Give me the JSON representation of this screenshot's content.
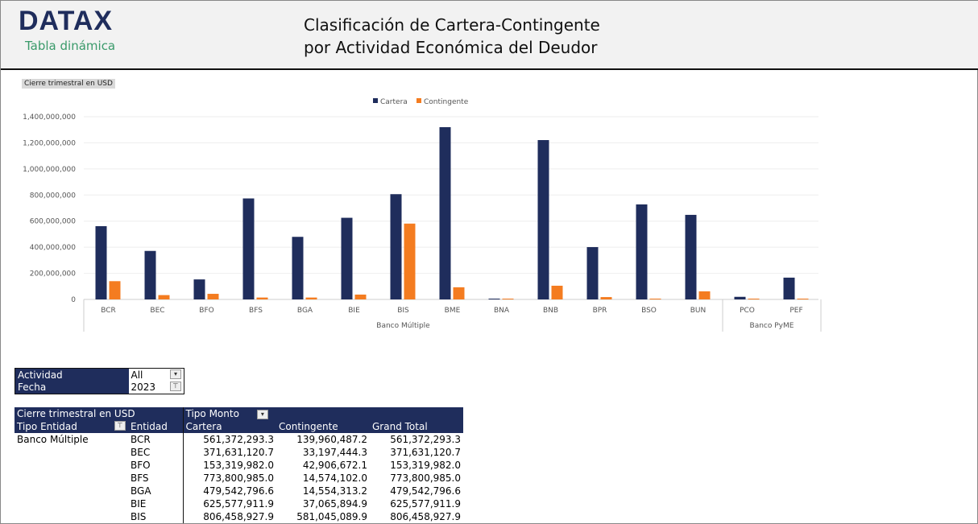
{
  "header": {
    "logo": "DATAX",
    "subtitle": "Tabla dinámica",
    "title_line1": "Clasificación de Cartera-Contingente",
    "title_line2": "por Actividad Económica del Deudor"
  },
  "field_chip": "Cierre trimestral en USD",
  "chart_data": {
    "type": "bar",
    "ylim": [
      0,
      1400000000
    ],
    "yticks": [
      "0",
      "200,000,000",
      "400,000,000",
      "600,000,000",
      "800,000,000",
      "1,000,000,000",
      "1,200,000,000",
      "1,400,000,000"
    ],
    "grid": true,
    "legend_position": "top",
    "categories": [
      "BCR",
      "BEC",
      "BFO",
      "BFS",
      "BGA",
      "BIE",
      "BIS",
      "BME",
      "BNA",
      "BNB",
      "BPR",
      "BSO",
      "BUN",
      "PCO",
      "PEF"
    ],
    "groups": [
      {
        "label": "Banco Múltiple",
        "count": 13
      },
      {
        "label": "Banco PyME",
        "count": 2
      }
    ],
    "series": [
      {
        "name": "Cartera",
        "color": "#1f2d5c",
        "values": [
          561372293.3,
          371631120.7,
          153319982.0,
          773800985.0,
          479542796.6,
          625577911.9,
          806458927.9,
          1320000000,
          5000000,
          1221000000,
          401000000,
          728000000,
          648000000,
          20000000,
          167000000
        ]
      },
      {
        "name": "Contingente",
        "color": "#f47c20",
        "values": [
          139960487.2,
          33197444.3,
          42906672.1,
          14574102.0,
          14554313.2,
          37065894.9,
          581045089.9,
          93000000,
          1000000,
          105000000,
          18000000,
          1000000,
          62000000,
          1000000,
          1000000
        ]
      }
    ]
  },
  "filters": [
    {
      "label": "Actividad",
      "value": "All"
    },
    {
      "label": "Fecha",
      "value": "2023"
    }
  ],
  "pivot": {
    "corner": "Cierre trimestral en USD",
    "col_field": "Tipo Monto",
    "row_fields": [
      "Tipo Entidad",
      "Entidad"
    ],
    "columns": [
      "Cartera",
      "Contingente",
      "Grand Total"
    ],
    "rows": [
      [
        "Banco Múltiple",
        "BCR",
        "561,372,293.3",
        "139,960,487.2",
        "561,372,293.3"
      ],
      [
        "",
        "BEC",
        "371,631,120.7",
        "33,197,444.3",
        "371,631,120.7"
      ],
      [
        "",
        "BFO",
        "153,319,982.0",
        "42,906,672.1",
        "153,319,982.0"
      ],
      [
        "",
        "BFS",
        "773,800,985.0",
        "14,574,102.0",
        "773,800,985.0"
      ],
      [
        "",
        "BGA",
        "479,542,796.6",
        "14,554,313.2",
        "479,542,796.6"
      ],
      [
        "",
        "BIE",
        "625,577,911.9",
        "37,065,894.9",
        "625,577,911.9"
      ],
      [
        "",
        "BIS",
        "806,458,927.9",
        "581,045,089.9",
        "806,458,927.9"
      ]
    ]
  }
}
